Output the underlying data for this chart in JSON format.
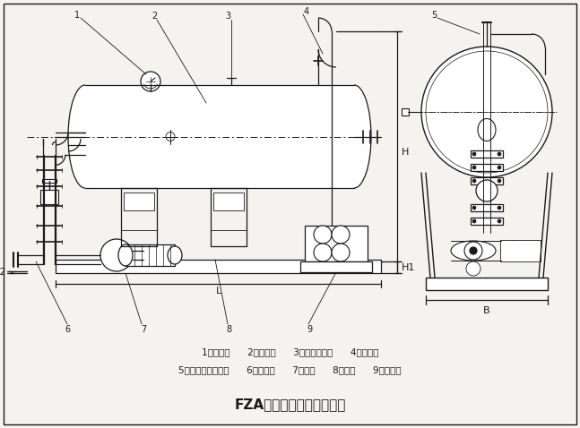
{
  "title": "FZA型溶气系统安装尺寸图",
  "bg_color": "#f5f3ef",
  "line_color": "#1a1a1a",
  "legend_line1": "1、压力表      2、溶气灌      3、溶气出水口      4、安全阀",
  "legend_line2": "5、浮球液位控制器      6、进水口      7、水泵      8、机架      9、空压机"
}
